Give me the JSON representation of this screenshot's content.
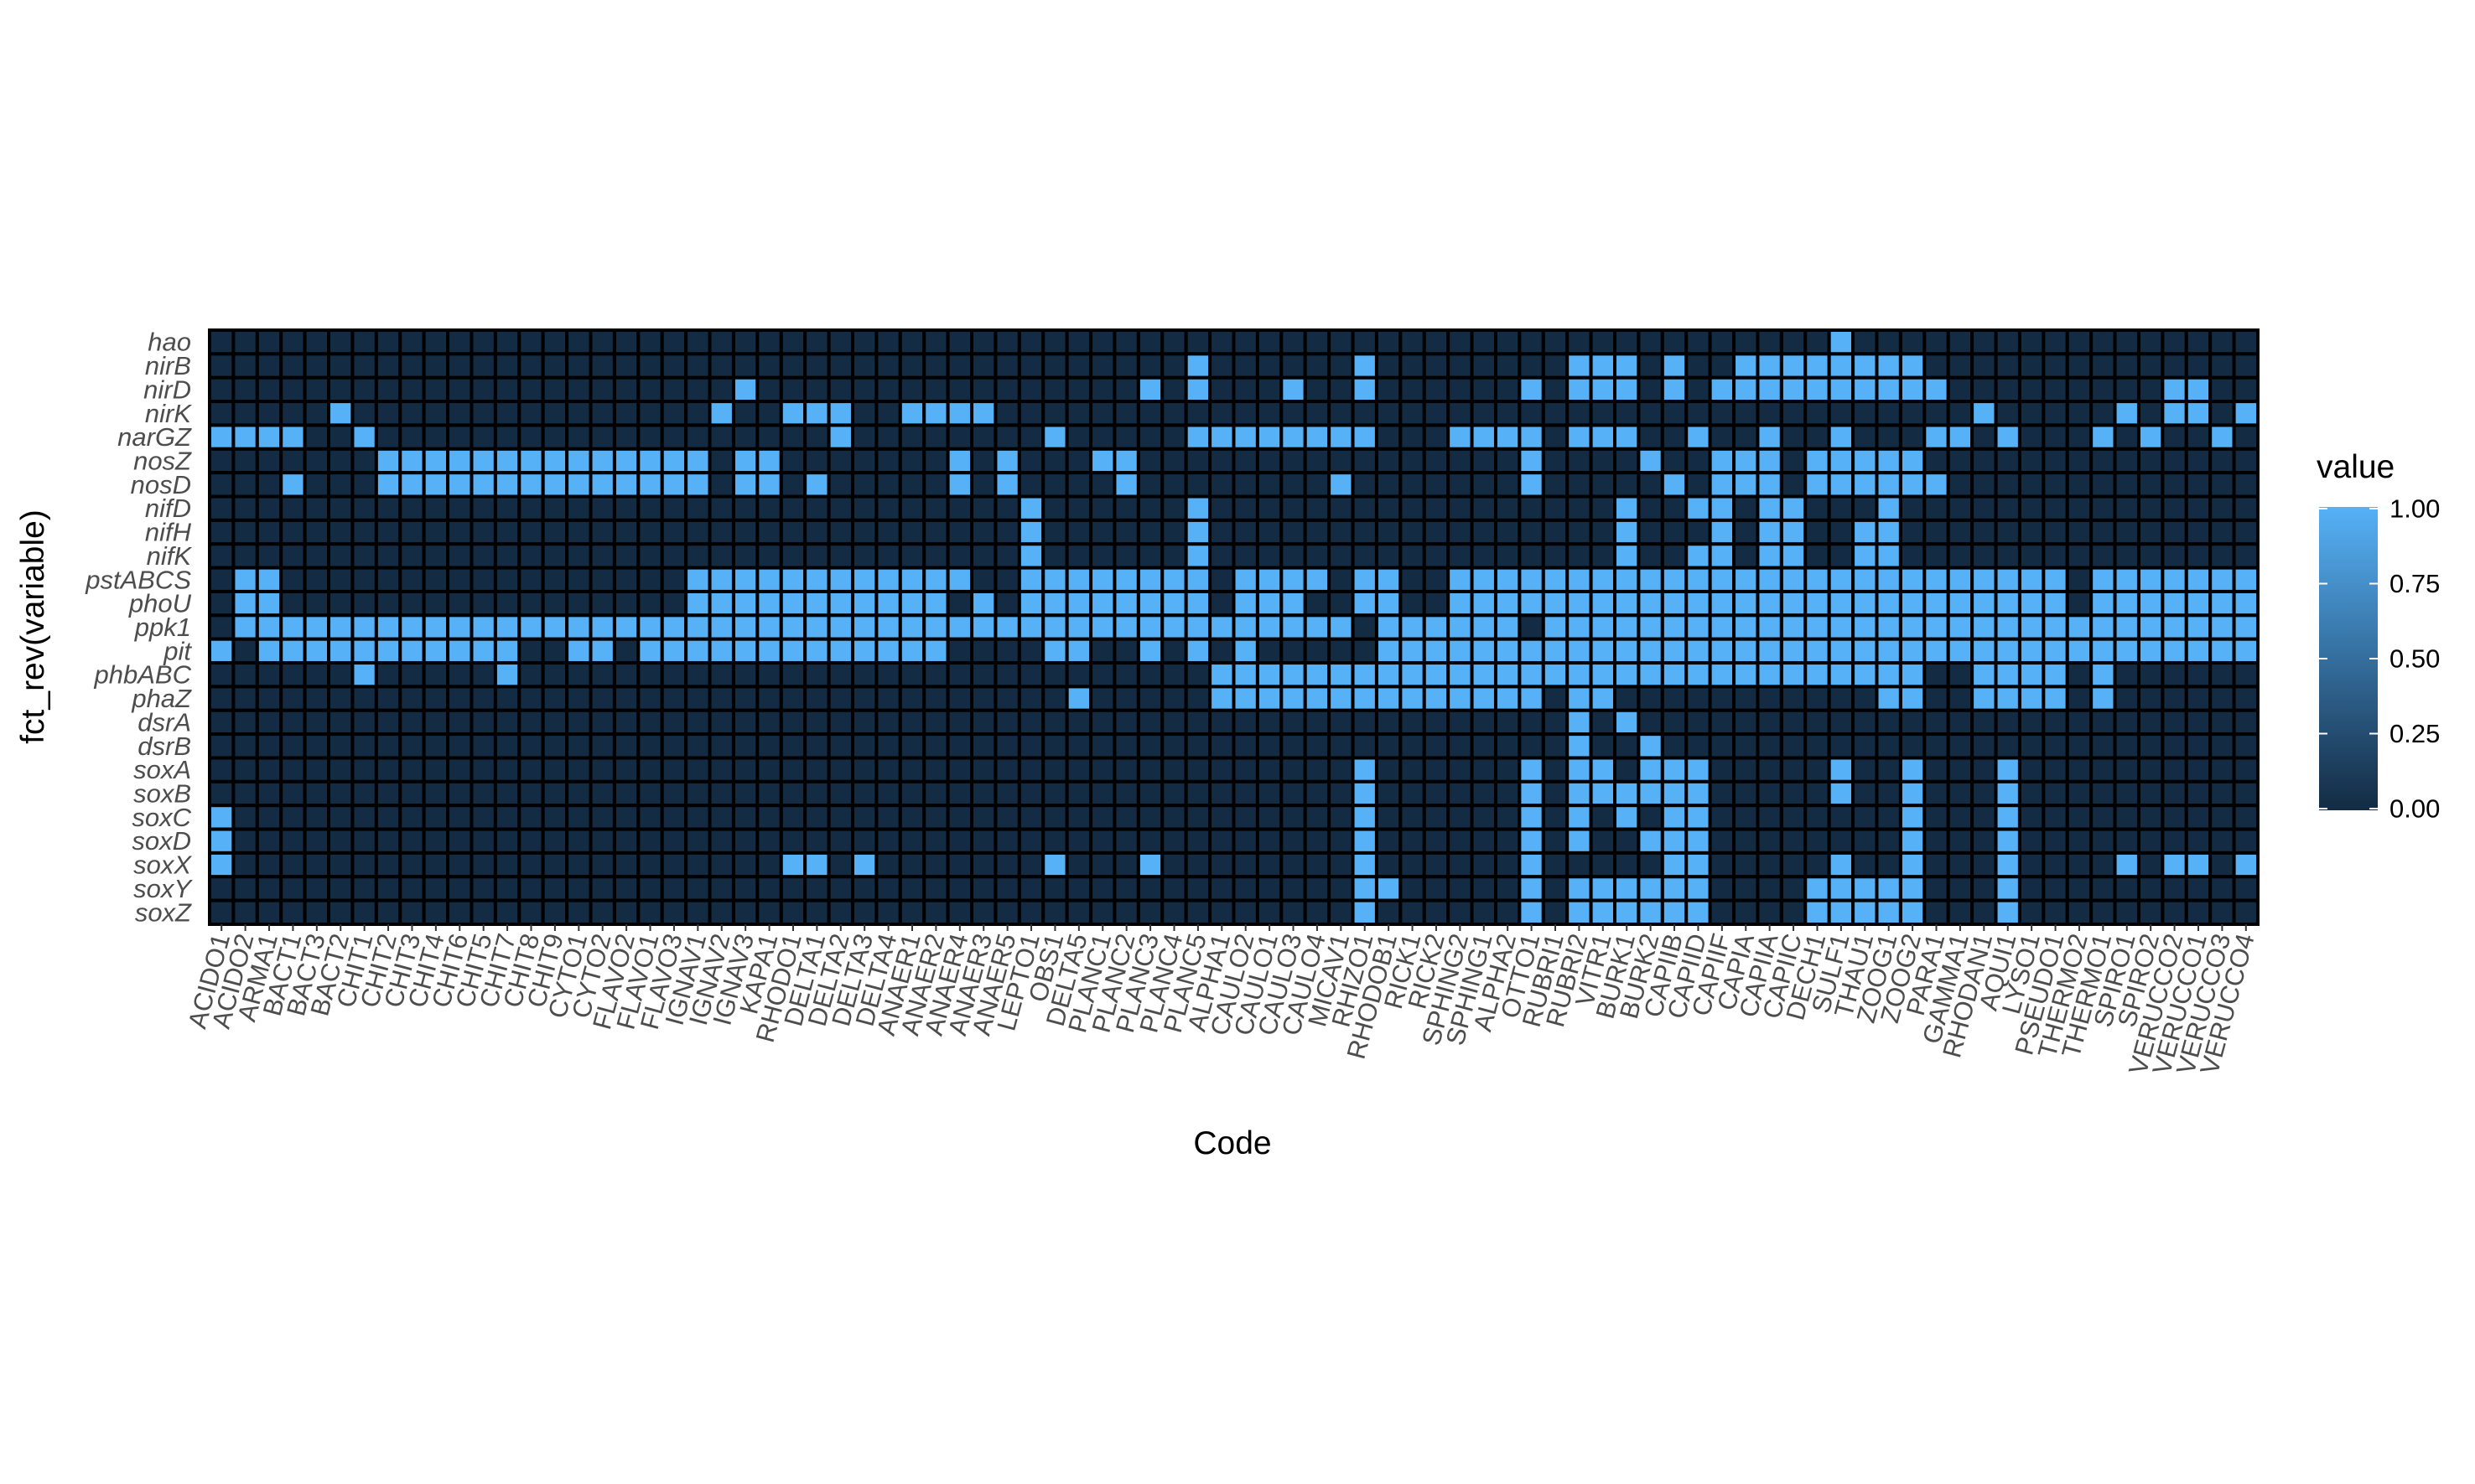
{
  "chart_data": {
    "type": "heatmap",
    "xlabel": "Code",
    "ylabel": "fct_rev(variable)",
    "legend_title": "value",
    "legend_ticks": [
      "0.00",
      "0.25",
      "0.50",
      "0.75",
      "1.00"
    ],
    "legend_position": "right",
    "colors": {
      "low": "#132B43",
      "high": "#56B1F7",
      "cell_border": "#000000"
    },
    "x": [
      "ACIDO1",
      "ACIDO2",
      "ARMA1",
      "BACT1",
      "BACT3",
      "BACT2",
      "CHIT1",
      "CHIT2",
      "CHIT3",
      "CHIT4",
      "CHIT6",
      "CHIT5",
      "CHIT7",
      "CHIT8",
      "CHIT9",
      "CYTO1",
      "CYTO2",
      "FLAVO2",
      "FLAVO1",
      "FLAVO3",
      "IGNAV1",
      "IGNAV2",
      "IGNAV3",
      "KAPA1",
      "RHODO1",
      "DELTA1",
      "DELTA2",
      "DELTA3",
      "DELTA4",
      "ANAER1",
      "ANAER2",
      "ANAER4",
      "ANAER3",
      "ANAER5",
      "LEPTO1",
      "OBS1",
      "DELTA5",
      "PLANC1",
      "PLANC2",
      "PLANC3",
      "PLANC4",
      "PLANC5",
      "ALPHA1",
      "CAULO2",
      "CAULO1",
      "CAULO3",
      "CAULO4",
      "MICAV1",
      "RHIZO1",
      "RHODOB1",
      "RICK1",
      "RICK2",
      "SPHING2",
      "SPHING1",
      "ALPHA2",
      "OTTO1",
      "RUBRI1",
      "RUBRI2",
      "VITR1",
      "BURK1",
      "BURK2",
      "CAPIIB",
      "CAPIID",
      "CAPIIF",
      "CAPIA",
      "CAPIIA",
      "CAPIIC",
      "DECH1",
      "SULF1",
      "THAU1",
      "ZOOG1",
      "ZOOG2",
      "PARA1",
      "GAMMA1",
      "RHODAN1",
      "AQUI1",
      "LYSO1",
      "PSEUDO1",
      "THERMO2",
      "THERMO1",
      "SPIRO1",
      "SPIRO2",
      "VERUCCO2",
      "VERUCCO1",
      "VERUCCO3",
      "VERUCCO4"
    ],
    "y": [
      "hao",
      "nirB",
      "nirD",
      "nirK",
      "narGZ",
      "nosZ",
      "nosD",
      "nifD",
      "nifH",
      "nifK",
      "pstABCS",
      "phoU",
      "ppk1",
      "pit",
      "phbABC",
      "phaZ",
      "dsrA",
      "dsrB",
      "soxA",
      "soxB",
      "soxC",
      "soxD",
      "soxX",
      "soxY",
      "soxZ"
    ],
    "present": {
      "hao": [
        68
      ],
      "nirB": [
        41,
        48,
        57,
        58,
        59,
        61,
        64,
        65,
        66,
        67,
        68,
        69,
        70,
        71
      ],
      "nirD": [
        22,
        39,
        41,
        45,
        48,
        55,
        57,
        58,
        59,
        61,
        63,
        64,
        65,
        66,
        67,
        68,
        69,
        70,
        71,
        72,
        82,
        83
      ],
      "nirK": [
        5,
        21,
        24,
        25,
        26,
        29,
        30,
        31,
        32,
        74,
        80,
        82,
        83,
        85
      ],
      "narGZ": [
        0,
        1,
        2,
        3,
        6,
        26,
        35,
        41,
        42,
        43,
        44,
        45,
        46,
        47,
        48,
        52,
        53,
        54,
        55,
        57,
        58,
        59,
        62,
        65,
        68,
        72,
        73,
        75,
        79,
        81,
        84
      ],
      "nosZ": [
        7,
        8,
        9,
        10,
        11,
        12,
        13,
        14,
        15,
        16,
        17,
        18,
        19,
        20,
        22,
        23,
        31,
        33,
        37,
        38,
        55,
        60,
        63,
        64,
        65,
        67,
        68,
        69,
        70,
        71
      ],
      "nosD": [
        3,
        7,
        8,
        9,
        10,
        11,
        12,
        13,
        14,
        15,
        16,
        17,
        18,
        19,
        20,
        22,
        23,
        25,
        31,
        33,
        38,
        47,
        55,
        61,
        63,
        64,
        65,
        67,
        68,
        69,
        70,
        71,
        72
      ],
      "nifD": [
        34,
        41,
        59,
        62,
        63,
        65,
        66,
        70
      ],
      "nifH": [
        34,
        41,
        59,
        63,
        65,
        66,
        69,
        70
      ],
      "nifK": [
        34,
        41,
        59,
        62,
        63,
        65,
        66,
        69,
        70
      ],
      "pstABCS": [
        1,
        2,
        20,
        21,
        22,
        23,
        24,
        25,
        26,
        27,
        28,
        29,
        30,
        31,
        34,
        35,
        36,
        37,
        38,
        39,
        40,
        41,
        43,
        44,
        45,
        46,
        48,
        49,
        52,
        53,
        54,
        55,
        56,
        57,
        58,
        59,
        60,
        61,
        62,
        63,
        64,
        65,
        66,
        67,
        68,
        69,
        70,
        71,
        72,
        73,
        74,
        75,
        76,
        77,
        79,
        80,
        81,
        82,
        83,
        84,
        85
      ],
      "phoU": [
        1,
        2,
        20,
        21,
        22,
        23,
        24,
        25,
        26,
        27,
        28,
        29,
        30,
        32,
        34,
        35,
        36,
        37,
        38,
        39,
        40,
        41,
        43,
        44,
        45,
        48,
        49,
        52,
        53,
        54,
        55,
        56,
        57,
        58,
        59,
        60,
        61,
        62,
        63,
        64,
        65,
        66,
        67,
        68,
        69,
        70,
        71,
        72,
        73,
        74,
        75,
        76,
        77,
        79,
        80,
        81,
        82,
        83,
        84,
        85
      ],
      "ppk1": [
        1,
        2,
        3,
        4,
        5,
        6,
        7,
        8,
        9,
        10,
        11,
        12,
        13,
        14,
        15,
        16,
        17,
        18,
        19,
        20,
        21,
        22,
        23,
        24,
        25,
        26,
        27,
        28,
        29,
        30,
        31,
        32,
        33,
        34,
        35,
        36,
        37,
        38,
        39,
        40,
        41,
        42,
        43,
        44,
        45,
        46,
        47,
        49,
        50,
        51,
        52,
        53,
        54,
        56,
        57,
        58,
        59,
        60,
        61,
        62,
        63,
        64,
        65,
        66,
        67,
        68,
        69,
        70,
        71,
        72,
        73,
        74,
        75,
        76,
        77,
        78,
        79,
        80,
        81,
        82,
        83,
        84,
        85
      ],
      "pit": [
        0,
        2,
        3,
        4,
        5,
        6,
        7,
        8,
        9,
        10,
        11,
        12,
        15,
        16,
        18,
        19,
        20,
        21,
        22,
        23,
        24,
        25,
        26,
        27,
        28,
        29,
        30,
        35,
        36,
        39,
        41,
        43,
        49,
        50,
        51,
        52,
        53,
        54,
        55,
        56,
        57,
        58,
        59,
        60,
        61,
        62,
        63,
        64,
        65,
        66,
        67,
        68,
        69,
        70,
        71,
        72,
        73,
        74,
        75,
        76,
        77,
        78,
        79,
        80,
        81,
        82,
        83,
        84,
        85
      ],
      "phbABC": [
        6,
        12,
        42,
        43,
        44,
        45,
        46,
        47,
        48,
        49,
        50,
        51,
        52,
        53,
        54,
        55,
        56,
        57,
        58,
        59,
        60,
        61,
        62,
        63,
        64,
        65,
        66,
        67,
        68,
        69,
        70,
        71,
        74,
        75,
        76,
        77,
        79
      ],
      "phaZ": [
        36,
        42,
        43,
        44,
        45,
        46,
        47,
        48,
        49,
        50,
        51,
        52,
        53,
        54,
        55,
        57,
        58,
        70,
        71,
        74,
        75,
        76,
        77,
        79
      ],
      "dsrA": [
        57,
        59
      ],
      "dsrB": [
        57,
        60
      ],
      "soxA": [
        48,
        55,
        57,
        58,
        60,
        61,
        62,
        68,
        71,
        75
      ],
      "soxB": [
        48,
        55,
        57,
        58,
        59,
        60,
        61,
        62,
        68,
        71,
        75
      ],
      "soxC": [
        0,
        48,
        55,
        57,
        59,
        61,
        62,
        71,
        75
      ],
      "soxD": [
        0,
        48,
        55,
        57,
        60,
        61,
        62,
        71,
        75
      ],
      "soxX": [
        0,
        24,
        25,
        27,
        35,
        39,
        48,
        55,
        61,
        62,
        68,
        71,
        75,
        80,
        82,
        83,
        85
      ],
      "soxY": [
        48,
        49,
        55,
        57,
        58,
        59,
        60,
        61,
        62,
        67,
        68,
        69,
        70,
        71,
        75
      ],
      "soxZ": [
        48,
        55,
        57,
        58,
        59,
        60,
        61,
        62,
        67,
        68,
        69,
        70,
        71,
        75
      ]
    }
  }
}
